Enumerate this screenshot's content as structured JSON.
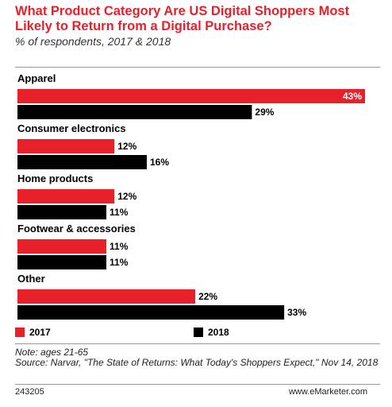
{
  "header": {
    "title": "What Product Category Are US Digital Shoppers Most Likely to Return from a Digital Purchase?",
    "subtitle": "% of respondents, 2017 & 2018"
  },
  "chart_data": {
    "type": "bar",
    "orientation": "horizontal",
    "categories": [
      "Apparel",
      "Consumer electronics",
      "Home products",
      "Footwear & accessories",
      "Other"
    ],
    "series": [
      {
        "name": "2017",
        "color": "#e8202a",
        "values": [
          43,
          12,
          12,
          11,
          22
        ],
        "labels": [
          "43%",
          "12%",
          "12%",
          "11%",
          "22%"
        ]
      },
      {
        "name": "2018",
        "color": "#000000",
        "values": [
          29,
          16,
          11,
          11,
          33
        ],
        "labels": [
          "29%",
          "16%",
          "11%",
          "11%",
          "33%"
        ]
      }
    ],
    "xlim": [
      0,
      43
    ],
    "legend_position": "bottom-left",
    "grid": false
  },
  "legend": {
    "item_2017": "2017",
    "item_2018": "2018"
  },
  "footer": {
    "note": "Note: ages 21-65",
    "source": "Source: Narvar, \"The State of Returns: What Today's Shoppers Expect,\" Nov 14, 2018",
    "chart_id": "243205",
    "brand": "www.eMarketer.com"
  }
}
